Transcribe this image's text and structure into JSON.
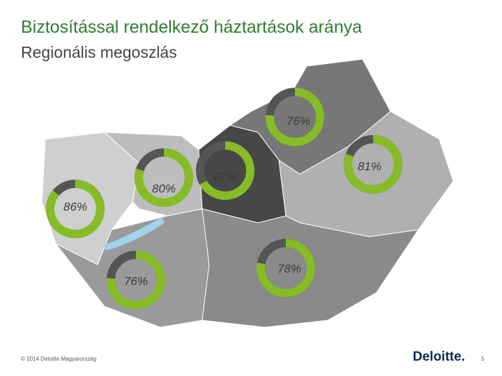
{
  "chart_data": {
    "type": "donut",
    "title": "Biztosítással rendelkező háztartások aránya",
    "subtitle": "Regionális megoszlás",
    "values": [
      76,
      81,
      67,
      80,
      86,
      76,
      78
    ],
    "value_labels": [
      "76%",
      "81%",
      "67%",
      "80%",
      "86%",
      "76%",
      "78%"
    ],
    "color": "#86bc25",
    "track_color": "#555555"
  },
  "footer": {
    "copyright": "© 2014 Deloitte Magyarország",
    "logo": "Deloitte.",
    "page": "5"
  }
}
